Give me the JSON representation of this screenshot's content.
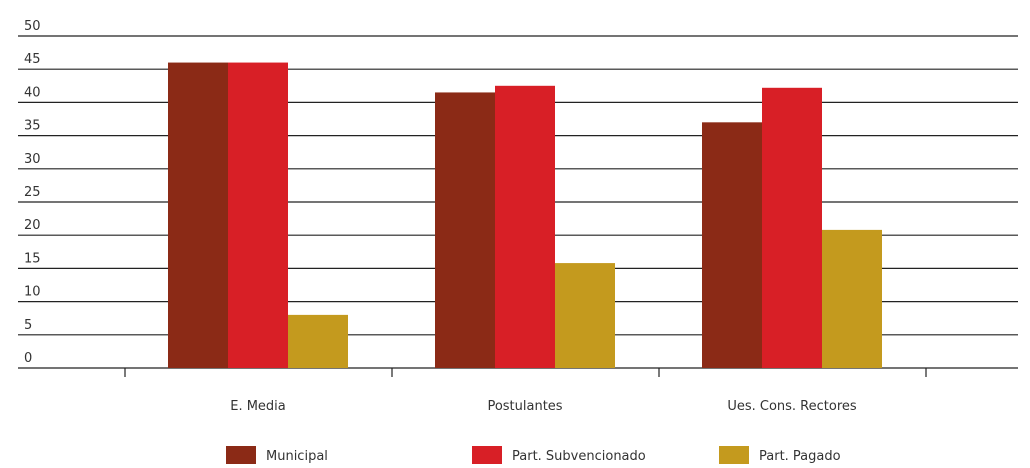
{
  "chart_data": {
    "type": "bar",
    "title": "",
    "xlabel": "",
    "ylabel": "",
    "ylim": [
      0,
      50
    ],
    "yticks": [
      0,
      5,
      10,
      15,
      20,
      25,
      30,
      35,
      40,
      45,
      50
    ],
    "grid": true,
    "legend_position": "bottom",
    "categories": [
      "E. Media",
      "Postulantes",
      "Ues. Cons. Rectores"
    ],
    "series": [
      {
        "name": "Municipal",
        "color": "#8B2A16",
        "values": [
          46,
          41.5,
          37
        ]
      },
      {
        "name": "Part. Subvencionado",
        "color": "#D81F26",
        "values": [
          46,
          42.5,
          42.2
        ]
      },
      {
        "name": "Part. Pagado",
        "color": "#C49A1E",
        "values": [
          8,
          15.8,
          20.8
        ]
      }
    ]
  }
}
